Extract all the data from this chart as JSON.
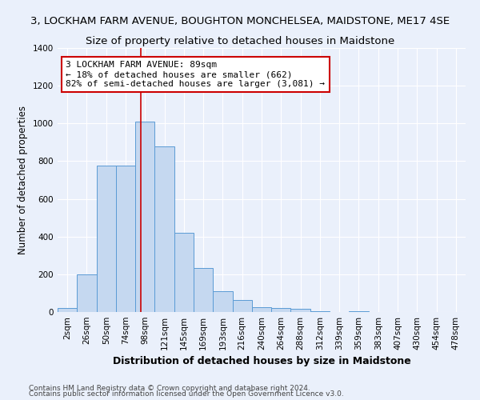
{
  "title": "3, LOCKHAM FARM AVENUE, BOUGHTON MONCHELSEA, MAIDSTONE, ME17 4SE",
  "subtitle": "Size of property relative to detached houses in Maidstone",
  "xlabel": "Distribution of detached houses by size in Maidstone",
  "ylabel": "Number of detached properties",
  "categories": [
    "2sqm",
    "26sqm",
    "50sqm",
    "74sqm",
    "98sqm",
    "121sqm",
    "145sqm",
    "169sqm",
    "193sqm",
    "216sqm",
    "240sqm",
    "264sqm",
    "288sqm",
    "312sqm",
    "339sqm",
    "359sqm",
    "383sqm",
    "407sqm",
    "430sqm",
    "454sqm",
    "478sqm"
  ],
  "values": [
    20,
    200,
    775,
    775,
    1010,
    880,
    420,
    235,
    110,
    65,
    25,
    20,
    15,
    5,
    0,
    5,
    0,
    0,
    0,
    0,
    0
  ],
  "bar_color": "#c5d8f0",
  "bar_edge_color": "#5b9bd5",
  "vline_x": 3.8,
  "vline_color": "#cc0000",
  "annotation_line1": "3 LOCKHAM FARM AVENUE: 89sqm",
  "annotation_line2": "← 18% of detached houses are smaller (662)",
  "annotation_line3": "82% of semi-detached houses are larger (3,081) →",
  "annotation_box_color": "#ffffff",
  "annotation_box_edge_color": "#cc0000",
  "ylim": [
    0,
    1400
  ],
  "yticks": [
    0,
    200,
    400,
    600,
    800,
    1000,
    1200,
    1400
  ],
  "footer1": "Contains HM Land Registry data © Crown copyright and database right 2024.",
  "footer2": "Contains public sector information licensed under the Open Government Licence v3.0.",
  "bg_color": "#eaf0fb",
  "plot_bg_color": "#eaf0fb",
  "grid_color": "#ffffff",
  "title_fontsize": 9.5,
  "subtitle_fontsize": 9.5,
  "tick_fontsize": 7.5,
  "ylabel_fontsize": 8.5,
  "xlabel_fontsize": 9,
  "annotation_fontsize": 8
}
